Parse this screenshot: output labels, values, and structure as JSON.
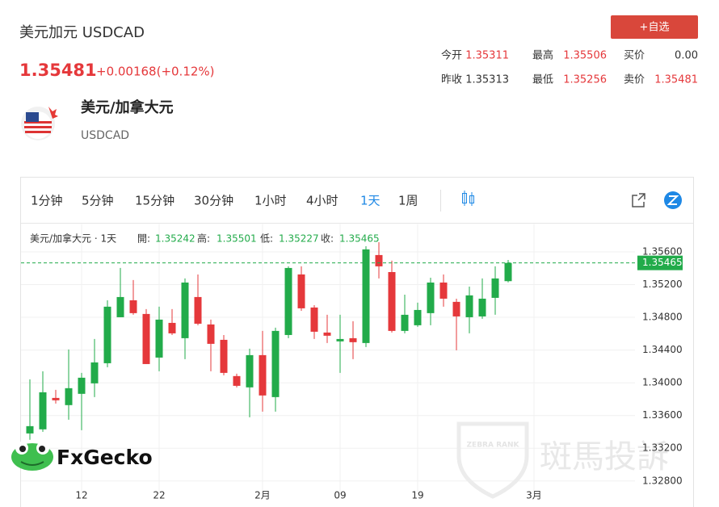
{
  "header": {
    "title": "美元加元 USDCAD",
    "price": "1.35481",
    "change": "+0.00168(+0.12%)",
    "button": "+自选"
  },
  "quote": {
    "rows": [
      [
        {
          "label": "今开",
          "value": "1.35311"
        },
        {
          "label": "最高",
          "value": "1.35506"
        },
        {
          "label": "买价",
          "value": "0.00"
        }
      ],
      [
        {
          "label": "昨收",
          "value": "1.35313"
        },
        {
          "label": "最低",
          "value": "1.35256"
        },
        {
          "label": "卖价",
          "value": "1.35481"
        }
      ]
    ]
  },
  "instrument": {
    "name": "美元/加拿大元",
    "code": "USDCAD"
  },
  "intervals": [
    "1分钟",
    "5分钟",
    "15分钟",
    "30分钟",
    "1小时",
    "4小时",
    "1天",
    "1周"
  ],
  "active_interval": "1天",
  "chart_data": {
    "type": "candlestick",
    "title": "美元/加拿大元 · 1天",
    "ohlc_labels": [
      "開:",
      "高:",
      "低:",
      "收:"
    ],
    "categories": [
      null,
      null,
      null,
      null,
      "12",
      null,
      null,
      null,
      null,
      null,
      "22",
      null,
      null,
      null,
      null,
      null,
      null,
      null,
      "2月",
      null,
      null,
      null,
      null,
      null,
      "09",
      null,
      null,
      null,
      null,
      null,
      "19",
      null,
      null,
      null,
      null,
      null,
      null,
      null,
      null,
      "3月"
    ],
    "open": [
      1.33381,
      1.33431,
      1.33815,
      1.33727,
      1.33865,
      1.33993,
      1.34239,
      1.34801,
      1.35008,
      1.34841,
      1.34308,
      1.34732,
      1.34545,
      1.35048,
      1.34713,
      1.34525,
      1.34082,
      1.33944,
      1.34338,
      1.33825,
      1.34584,
      1.35324,
      1.3492,
      1.34614,
      1.34506,
      1.34545,
      1.34486,
      1.35561,
      1.35353,
      1.34634,
      1.34703,
      1.34851,
      1.35225,
      1.34989,
      1.34801,
      1.34811,
      1.35038,
      1.35242,
      null,
      null
    ],
    "high": [
      1.34042,
      1.34141,
      1.33914,
      1.34407,
      1.34121,
      1.34535,
      1.35008,
      1.35403,
      1.35255,
      1.349,
      1.3493,
      1.349,
      1.35275,
      1.35324,
      1.34772,
      1.34584,
      1.34111,
      1.34417,
      1.34634,
      1.34673,
      1.35423,
      1.35423,
      1.34949,
      1.34831,
      1.34831,
      1.34752,
      1.35669,
      1.35718,
      1.35492,
      1.35077,
      1.34979,
      1.35284,
      1.35324,
      1.35028,
      1.35176,
      1.35275,
      1.35423,
      1.35501,
      null,
      null
    ],
    "low": [
      1.33303,
      1.33401,
      1.33746,
      1.33549,
      1.33421,
      1.33825,
      1.3419,
      1.34801,
      1.34831,
      1.34229,
      1.34141,
      1.34584,
      1.34289,
      1.34703,
      1.34141,
      1.34091,
      1.33944,
      1.33579,
      1.33648,
      1.33648,
      1.34545,
      1.3488,
      1.34535,
      1.34486,
      1.34121,
      1.34289,
      1.34437,
      1.35275,
      1.34614,
      1.34604,
      1.34683,
      1.34703,
      1.3493,
      1.34397,
      1.34604,
      1.34782,
      1.34831,
      1.35227,
      null,
      null
    ],
    "close": [
      1.3347,
      1.33884,
      1.33786,
      1.33934,
      1.34062,
      1.34249,
      1.3493,
      1.35048,
      1.34851,
      1.34229,
      1.34772,
      1.34604,
      1.35225,
      1.34722,
      1.34476,
      1.34121,
      1.33963,
      1.34338,
      1.33845,
      1.34634,
      1.35403,
      1.3491,
      1.34624,
      1.34575,
      1.34535,
      1.34496,
      1.3563,
      1.35423,
      1.34634,
      1.34831,
      1.3489,
      1.35225,
      1.35028,
      1.34811,
      1.35068,
      1.35028,
      1.35275,
      1.35465,
      null,
      null
    ],
    "up_color": "#22ab4a",
    "down_color": "#e5383b",
    "ylim": [
      1.3264,
      1.3594
    ],
    "yticks": [
      {
        "value": 1.356,
        "label": "1.35600"
      },
      {
        "value": 1.352,
        "label": "1.35200"
      },
      {
        "value": 1.348,
        "label": "1.34800"
      },
      {
        "value": 1.344,
        "label": "1.34400"
      },
      {
        "value": 1.34,
        "label": "1.34000"
      },
      {
        "value": 1.336,
        "label": "1.33600"
      },
      {
        "value": 1.332,
        "label": "1.33200"
      },
      {
        "value": 1.328,
        "label": "1.32800"
      }
    ],
    "grid": true
  },
  "watermarks": {
    "left": "FxGecko",
    "right": "斑馬投訴",
    "badge": "ZEBRA RANK"
  }
}
